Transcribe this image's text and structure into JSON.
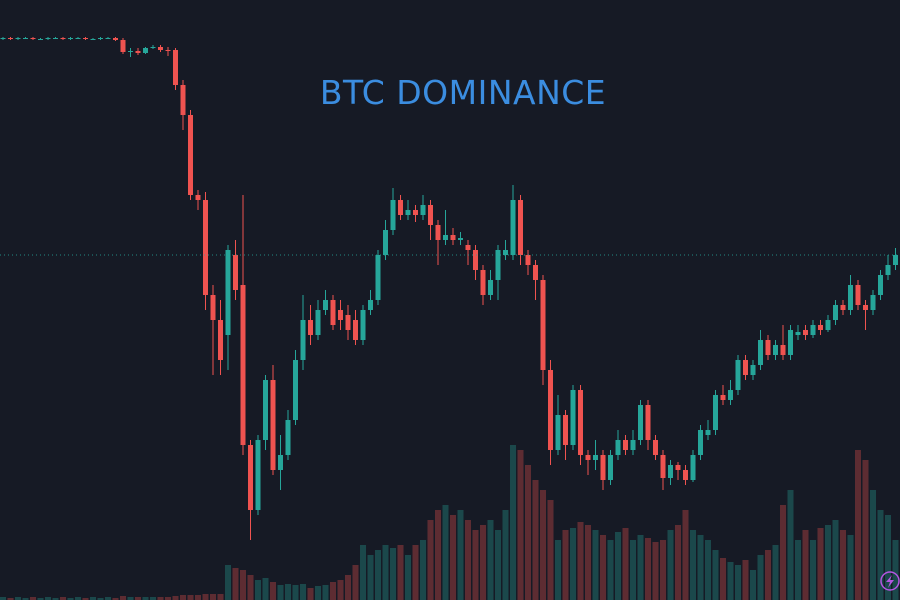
{
  "chart_data": {
    "type": "candlestick",
    "title": "BTC DOMINANCE",
    "ylim": [
      0,
      600
    ],
    "volume_lim": [
      0,
      600
    ],
    "up_color": "#26a69a",
    "down_color": "#ef5350",
    "open": [
      561,
      562,
      561,
      562,
      562,
      561,
      561,
      562,
      562,
      561,
      562,
      562,
      561,
      561,
      562,
      562,
      560,
      548,
      549,
      547,
      552,
      553,
      550,
      550,
      515,
      485,
      405,
      400,
      305,
      280,
      265,
      345,
      315,
      155,
      90,
      160,
      220,
      130,
      145,
      180,
      240,
      280,
      265,
      290,
      300,
      290,
      285,
      280,
      260,
      290,
      300,
      345,
      370,
      400,
      385,
      390,
      385,
      395,
      375,
      360,
      365,
      360,
      355,
      350,
      330,
      305,
      320,
      345,
      345,
      400,
      345,
      335,
      320,
      230,
      150,
      185,
      155,
      210,
      145,
      140,
      145,
      120,
      145,
      160,
      150,
      160,
      195,
      160,
      145,
      122,
      135,
      130,
      120,
      145,
      165,
      170,
      205,
      200,
      210,
      240,
      225,
      235,
      260,
      245,
      255,
      245,
      265,
      270,
      265,
      275,
      270,
      280,
      295,
      290,
      315,
      295,
      290,
      305,
      325,
      335
    ],
    "high": [
      563,
      563,
      563,
      563,
      563,
      562,
      563,
      563,
      563,
      563,
      563,
      563,
      562,
      563,
      563,
      563,
      562,
      552,
      552,
      553,
      555,
      555,
      553,
      552,
      520,
      490,
      410,
      408,
      315,
      300,
      355,
      360,
      405,
      160,
      165,
      225,
      235,
      165,
      190,
      250,
      305,
      295,
      300,
      310,
      305,
      300,
      295,
      290,
      295,
      310,
      350,
      380,
      412,
      405,
      400,
      395,
      405,
      400,
      380,
      390,
      372,
      368,
      360,
      355,
      335,
      330,
      355,
      360,
      415,
      405,
      350,
      340,
      325,
      240,
      205,
      190,
      215,
      215,
      150,
      160,
      150,
      150,
      170,
      165,
      170,
      200,
      200,
      165,
      150,
      140,
      138,
      135,
      150,
      175,
      180,
      210,
      215,
      220,
      245,
      245,
      240,
      270,
      265,
      260,
      275,
      275,
      275,
      275,
      280,
      280,
      285,
      300,
      300,
      325,
      320,
      300,
      310,
      330,
      345,
      352
    ],
    "low": [
      560,
      560,
      560,
      561,
      560,
      560,
      560,
      561,
      560,
      560,
      561,
      560,
      560,
      560,
      561,
      559,
      546,
      543,
      545,
      546,
      551,
      548,
      544,
      510,
      470,
      400,
      390,
      290,
      225,
      225,
      230,
      300,
      145,
      60,
      85,
      150,
      125,
      110,
      140,
      175,
      230,
      255,
      260,
      285,
      270,
      270,
      260,
      255,
      255,
      285,
      295,
      340,
      365,
      380,
      380,
      378,
      380,
      360,
      335,
      355,
      355,
      355,
      335,
      320,
      295,
      300,
      300,
      340,
      340,
      335,
      325,
      300,
      215,
      135,
      145,
      140,
      150,
      135,
      125,
      130,
      110,
      115,
      140,
      145,
      145,
      155,
      150,
      140,
      110,
      115,
      120,
      115,
      118,
      140,
      160,
      165,
      195,
      195,
      205,
      220,
      220,
      230,
      240,
      240,
      240,
      240,
      260,
      260,
      262,
      265,
      268,
      275,
      285,
      285,
      290,
      270,
      285,
      300,
      320,
      330
    ],
    "close": [
      562,
      561,
      562,
      562,
      561,
      561,
      562,
      562,
      561,
      562,
      562,
      561,
      561,
      562,
      562,
      560,
      548,
      549,
      547,
      552,
      553,
      550,
      549,
      515,
      485,
      405,
      400,
      305,
      280,
      240,
      350,
      310,
      155,
      90,
      160,
      220,
      130,
      145,
      180,
      240,
      280,
      265,
      290,
      300,
      275,
      280,
      270,
      260,
      290,
      300,
      345,
      370,
      400,
      385,
      390,
      385,
      395,
      375,
      360,
      365,
      360,
      362,
      350,
      330,
      305,
      320,
      350,
      350,
      400,
      345,
      335,
      320,
      230,
      150,
      185,
      155,
      210,
      145,
      140,
      145,
      120,
      145,
      160,
      150,
      160,
      195,
      160,
      145,
      122,
      135,
      130,
      120,
      145,
      170,
      170,
      205,
      200,
      210,
      240,
      225,
      235,
      260,
      245,
      255,
      245,
      270,
      268,
      265,
      275,
      270,
      280,
      295,
      290,
      315,
      295,
      290,
      305,
      325,
      335,
      345
    ],
    "volume": [
      3,
      2,
      3,
      2,
      3,
      2,
      3,
      2,
      3,
      2,
      3,
      2,
      3,
      2,
      3,
      2,
      4,
      3,
      3,
      3,
      3,
      3,
      3,
      4,
      5,
      5,
      5,
      6,
      6,
      6,
      35,
      32,
      30,
      25,
      20,
      22,
      18,
      15,
      16,
      15,
      16,
      12,
      14,
      15,
      18,
      20,
      25,
      35,
      55,
      45,
      50,
      55,
      52,
      55,
      45,
      55,
      60,
      80,
      90,
      95,
      85,
      90,
      80,
      70,
      75,
      80,
      70,
      90,
      155,
      150,
      135,
      120,
      110,
      100,
      60,
      70,
      72,
      78,
      75,
      70,
      65,
      60,
      68,
      72,
      60,
      65,
      62,
      58,
      60,
      70,
      75,
      90,
      70,
      65,
      60,
      50,
      42,
      38,
      35,
      40,
      30,
      45,
      50,
      55,
      95,
      110,
      60,
      70,
      60,
      72,
      75,
      80,
      70,
      65,
      150,
      140,
      110,
      90,
      85,
      60
    ]
  }
}
